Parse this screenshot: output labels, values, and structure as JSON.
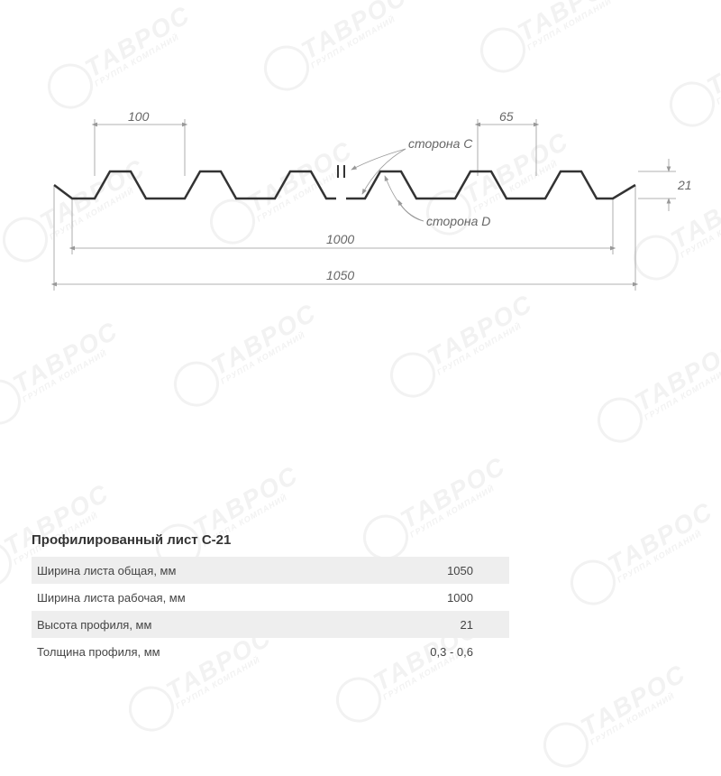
{
  "watermark": {
    "main": "ТАВРОС",
    "sub": "ГРУППА КОМПАНИЙ"
  },
  "diagram": {
    "type": "profile-cross-section",
    "profile_color": "#333333",
    "profile_stroke_width": 2,
    "dim_color": "#999999",
    "dim_stroke_width": 0.8,
    "text_color": "#666666",
    "label_c": "сторона C",
    "label_d": "сторона D",
    "dim_100": "100",
    "dim_65": "65",
    "dim_21": "21",
    "dim_1000": "1000",
    "dim_1050": "1050",
    "font_size_dim": 14,
    "font_style_dim": "italic"
  },
  "spec": {
    "title": "Профилированный лист С-21",
    "title_fontsize": 15,
    "row_fontsize": 13,
    "alt_bg": "#eeeeee",
    "rows": [
      {
        "label": "Ширина листа общая, мм",
        "value": "1050"
      },
      {
        "label": "Ширина листа рабочая, мм",
        "value": "1000"
      },
      {
        "label": "Высота профиля, мм",
        "value": "21"
      },
      {
        "label": "Толщина профиля, мм",
        "value": "0,3 - 0,6"
      }
    ]
  }
}
